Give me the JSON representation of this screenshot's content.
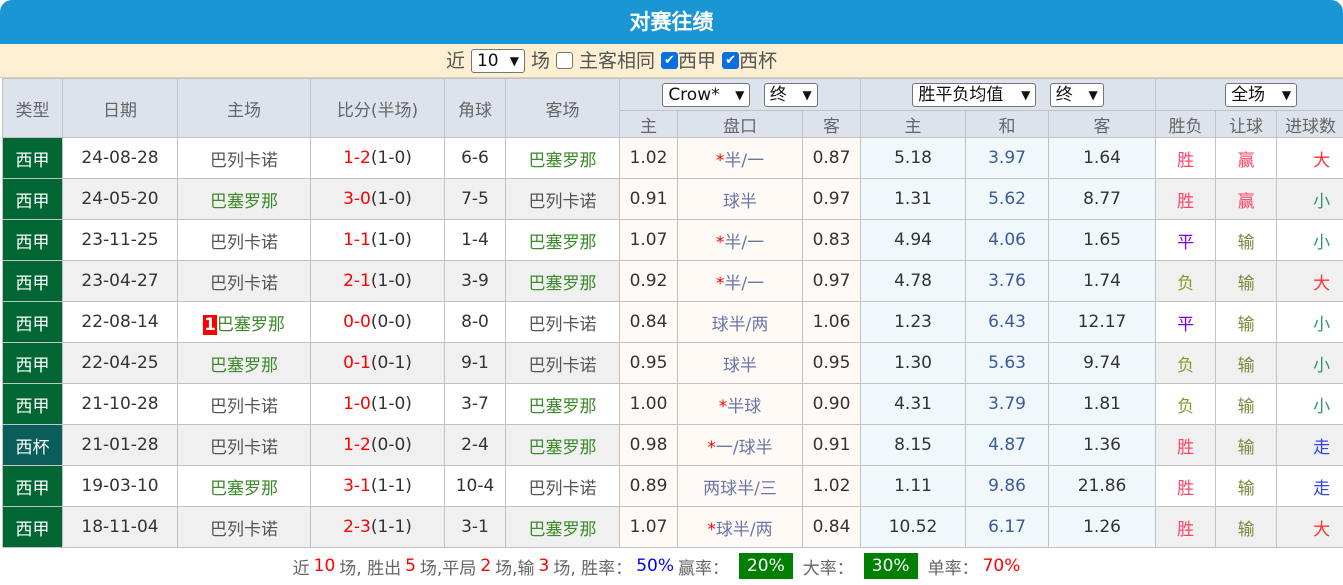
{
  "title": "对赛往绩",
  "filter": {
    "recent_label": "近",
    "count_value": "10",
    "unit_label": "场",
    "same_home_away_label": "主客相同",
    "same_home_away_checked": false,
    "league1_label": "西甲",
    "league1_checked": true,
    "league2_label": "西杯",
    "league2_checked": true
  },
  "headers": {
    "type": "类型",
    "date": "日期",
    "home": "主场",
    "score": "比分(半场)",
    "corner": "角球",
    "away": "客场",
    "ah_company": "Crow*",
    "ah_time": "终",
    "eu_type": "胜平负均值",
    "eu_time": "终",
    "scope": "全场",
    "ah_home": "主",
    "ah_line": "盘口",
    "ah_away": "客",
    "eu_home": "主",
    "eu_draw": "和",
    "eu_away": "客",
    "result": "胜负",
    "cover": "让球",
    "goals": "进球数"
  },
  "rows": [
    {
      "type": "西甲",
      "date": "24-08-28",
      "home": "巴列卡诺",
      "home_side": "a",
      "badge": "",
      "ft": "1-2",
      "ht": "(1-0)",
      "corner": "6-6",
      "away": "巴塞罗那",
      "away_side": "b",
      "ah_home": "1.02",
      "ah_star": "*",
      "ah_line": "半/一",
      "ah_away": "0.87",
      "eu_home": "5.18",
      "eu_draw": "3.97",
      "eu_away": "1.64",
      "result": "胜",
      "cover": "赢",
      "goals": "大"
    },
    {
      "type": "西甲",
      "date": "24-05-20",
      "home": "巴塞罗那",
      "home_side": "b",
      "badge": "",
      "ft": "3-0",
      "ht": "(1-0)",
      "corner": "7-5",
      "away": "巴列卡诺",
      "away_side": "a",
      "ah_home": "0.91",
      "ah_star": "",
      "ah_line": "球半",
      "ah_away": "0.97",
      "eu_home": "1.31",
      "eu_draw": "5.62",
      "eu_away": "8.77",
      "result": "胜",
      "cover": "赢",
      "goals": "小"
    },
    {
      "type": "西甲",
      "date": "23-11-25",
      "home": "巴列卡诺",
      "home_side": "a",
      "badge": "",
      "ft": "1-1",
      "ht": "(1-0)",
      "corner": "1-4",
      "away": "巴塞罗那",
      "away_side": "b",
      "ah_home": "1.07",
      "ah_star": "*",
      "ah_line": "半/一",
      "ah_away": "0.83",
      "eu_home": "4.94",
      "eu_draw": "4.06",
      "eu_away": "1.65",
      "result": "平",
      "cover": "输",
      "goals": "小"
    },
    {
      "type": "西甲",
      "date": "23-04-27",
      "home": "巴列卡诺",
      "home_side": "a",
      "badge": "",
      "ft": "2-1",
      "ht": "(1-0)",
      "corner": "3-9",
      "away": "巴塞罗那",
      "away_side": "b",
      "ah_home": "0.92",
      "ah_star": "*",
      "ah_line": "半/一",
      "ah_away": "0.97",
      "eu_home": "4.78",
      "eu_draw": "3.76",
      "eu_away": "1.74",
      "result": "负",
      "cover": "输",
      "goals": "大"
    },
    {
      "type": "西甲",
      "date": "22-08-14",
      "home": "巴塞罗那",
      "home_side": "b",
      "badge": "1",
      "ft": "0-0",
      "ht": "(0-0)",
      "corner": "8-0",
      "away": "巴列卡诺",
      "away_side": "a",
      "ah_home": "0.84",
      "ah_star": "",
      "ah_line": "球半/两",
      "ah_away": "1.06",
      "eu_home": "1.23",
      "eu_draw": "6.43",
      "eu_away": "12.17",
      "result": "平",
      "cover": "输",
      "goals": "小"
    },
    {
      "type": "西甲",
      "date": "22-04-25",
      "home": "巴塞罗那",
      "home_side": "b",
      "badge": "",
      "ft": "0-1",
      "ht": "(0-1)",
      "corner": "9-1",
      "away": "巴列卡诺",
      "away_side": "a",
      "ah_home": "0.95",
      "ah_star": "",
      "ah_line": "球半",
      "ah_away": "0.95",
      "eu_home": "1.30",
      "eu_draw": "5.63",
      "eu_away": "9.74",
      "result": "负",
      "cover": "输",
      "goals": "小"
    },
    {
      "type": "西甲",
      "date": "21-10-28",
      "home": "巴列卡诺",
      "home_side": "a",
      "badge": "",
      "ft": "1-0",
      "ht": "(1-0)",
      "corner": "3-7",
      "away": "巴塞罗那",
      "away_side": "b",
      "ah_home": "1.00",
      "ah_star": "*",
      "ah_line": "半球",
      "ah_away": "0.90",
      "eu_home": "4.31",
      "eu_draw": "3.79",
      "eu_away": "1.81",
      "result": "负",
      "cover": "输",
      "goals": "小"
    },
    {
      "type": "西杯",
      "date": "21-01-28",
      "home": "巴列卡诺",
      "home_side": "a",
      "badge": "",
      "ft": "1-2",
      "ht": "(0-0)",
      "corner": "2-4",
      "away": "巴塞罗那",
      "away_side": "b",
      "ah_home": "0.98",
      "ah_star": "*",
      "ah_line": "一/球半",
      "ah_away": "0.91",
      "eu_home": "8.15",
      "eu_draw": "4.87",
      "eu_away": "1.36",
      "result": "胜",
      "cover": "输",
      "goals": "走"
    },
    {
      "type": "西甲",
      "date": "19-03-10",
      "home": "巴塞罗那",
      "home_side": "b",
      "badge": "",
      "ft": "3-1",
      "ht": "(1-1)",
      "corner": "10-4",
      "away": "巴列卡诺",
      "away_side": "a",
      "ah_home": "0.89",
      "ah_star": "",
      "ah_line": "两球半/三",
      "ah_away": "1.02",
      "eu_home": "1.11",
      "eu_draw": "9.86",
      "eu_away": "21.86",
      "result": "胜",
      "cover": "输",
      "goals": "走"
    },
    {
      "type": "西甲",
      "date": "18-11-04",
      "home": "巴列卡诺",
      "home_side": "a",
      "badge": "",
      "ft": "2-3",
      "ht": "(1-1)",
      "corner": "3-1",
      "away": "巴塞罗那",
      "away_side": "b",
      "ah_home": "1.07",
      "ah_star": "*",
      "ah_line": "球半/两",
      "ah_away": "0.84",
      "eu_home": "10.52",
      "eu_draw": "6.17",
      "eu_away": "1.26",
      "result": "胜",
      "cover": "输",
      "goals": "大"
    }
  ],
  "footer": {
    "p1": "近",
    "total": "10",
    "p2": "场, 胜出",
    "wins": "5",
    "p3": "场,平局",
    "draws": "2",
    "p4": "场,输",
    "losses": "3",
    "p5": "场, 胜率：",
    "win_rate": "50%",
    "p6": "赢率：",
    "cover_rate": "20%",
    "p7": "大率：",
    "big_rate": "30%",
    "p8": "单率：",
    "odd_rate": "70%"
  },
  "colors": {
    "title_bar": "#1b96d4",
    "type_cell": "#006633",
    "footer_badge": "#008000",
    "filter_bar": "#fdf0d2"
  }
}
